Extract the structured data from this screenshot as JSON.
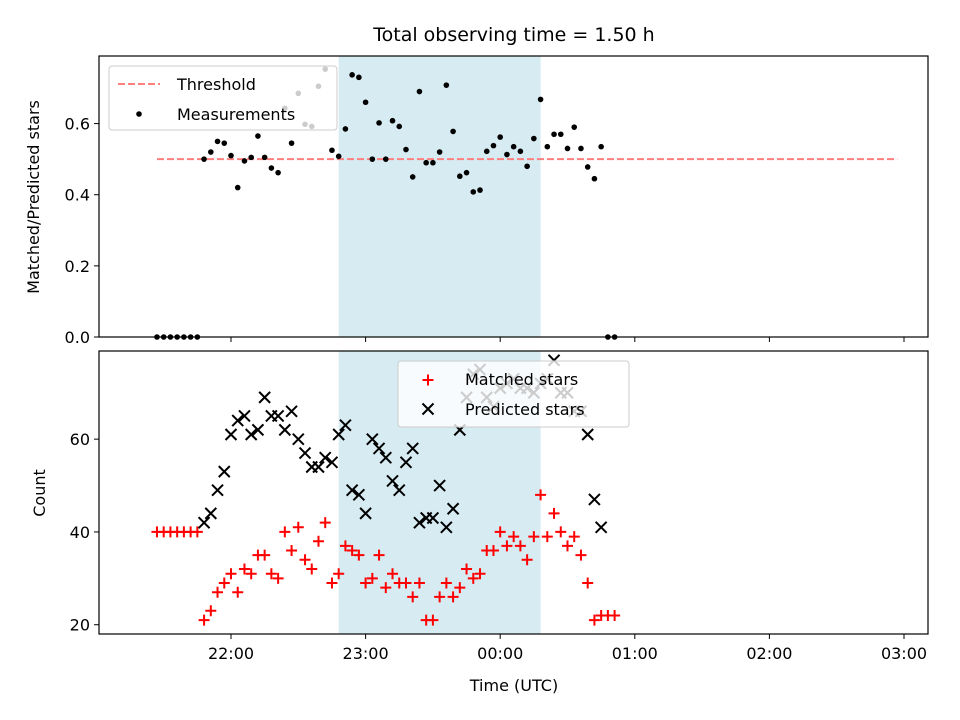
{
  "chart_data": {
    "title": "Total observing time = 1.50 h",
    "colors": {
      "threshold": "#ff7f7f",
      "measurements": "#000000",
      "matched": "#ff0000",
      "predicted": "#000000",
      "shade": "#add8e6"
    },
    "time_ticks": [
      "22:00",
      "23:00",
      "00:00",
      "01:00",
      "02:00",
      "03:00"
    ],
    "shaded_interval": {
      "start": "22:48",
      "end": "00:18"
    },
    "panels": [
      {
        "type": "scatter",
        "ylabel": "Matched/Predicted stars",
        "ylim": [
          0,
          0.79
        ],
        "yticks": [
          "0.0",
          "0.2",
          "0.4",
          "0.6"
        ],
        "legend": {
          "position": "top-left",
          "entries": [
            "Threshold",
            "Measurements"
          ]
        },
        "threshold": {
          "name": "Threshold",
          "value": 0.5,
          "x_range": [
            "21:27",
            "02:57"
          ]
        },
        "measurements": {
          "name": "Measurements",
          "points": [
            [
              "21:27",
              0.0
            ],
            [
              "21:30",
              0.0
            ],
            [
              "21:33",
              0.0
            ],
            [
              "21:36",
              0.0
            ],
            [
              "21:39",
              0.0
            ],
            [
              "21:42",
              0.0
            ],
            [
              "21:45",
              0.0
            ],
            [
              "21:48",
              0.5
            ],
            [
              "21:51",
              0.52
            ],
            [
              "21:54",
              0.55
            ],
            [
              "21:57",
              0.545
            ],
            [
              "22:00",
              0.51
            ],
            [
              "22:03",
              0.42
            ],
            [
              "22:06",
              0.495
            ],
            [
              "22:09",
              0.505
            ],
            [
              "22:12",
              0.565
            ],
            [
              "22:15",
              0.505
            ],
            [
              "22:18",
              0.475
            ],
            [
              "22:21",
              0.462
            ],
            [
              "22:24",
              0.643
            ],
            [
              "22:27",
              0.545
            ],
            [
              "22:30",
              0.685
            ],
            [
              "22:33",
              0.598
            ],
            [
              "22:36",
              0.592
            ],
            [
              "22:39",
              0.705
            ],
            [
              "22:42",
              0.753
            ],
            [
              "22:45",
              0.525
            ],
            [
              "22:48",
              0.508
            ],
            [
              "22:51",
              0.585
            ],
            [
              "22:54",
              0.737
            ],
            [
              "22:57",
              0.73
            ],
            [
              "23:00",
              0.66
            ],
            [
              "23:03",
              0.5
            ],
            [
              "23:06",
              0.602
            ],
            [
              "23:09",
              0.5
            ],
            [
              "23:12",
              0.608
            ],
            [
              "23:15",
              0.592
            ],
            [
              "23:18",
              0.527
            ],
            [
              "23:21",
              0.45
            ],
            [
              "23:24",
              0.69
            ],
            [
              "23:27",
              0.49
            ],
            [
              "23:30",
              0.49
            ],
            [
              "23:33",
              0.52
            ],
            [
              "23:36",
              0.708
            ],
            [
              "23:39",
              0.578
            ],
            [
              "23:42",
              0.452
            ],
            [
              "23:45",
              0.462
            ],
            [
              "23:48",
              0.408
            ],
            [
              "23:51",
              0.413
            ],
            [
              "23:54",
              0.522
            ],
            [
              "23:57",
              0.538
            ],
            [
              "00:00",
              0.562
            ],
            [
              "00:03",
              0.513
            ],
            [
              "00:06",
              0.535
            ],
            [
              "00:09",
              0.522
            ],
            [
              "00:12",
              0.48
            ],
            [
              "00:15",
              0.558
            ],
            [
              "00:18",
              0.668
            ],
            [
              "00:21",
              0.535
            ],
            [
              "00:24",
              0.57
            ],
            [
              "00:27",
              0.57
            ],
            [
              "00:30",
              0.53
            ],
            [
              "00:33",
              0.59
            ],
            [
              "00:36",
              0.53
            ],
            [
              "00:39",
              0.478
            ],
            [
              "00:42",
              0.445
            ],
            [
              "00:45",
              0.535
            ],
            [
              "00:48",
              0.0
            ],
            [
              "00:51",
              0.0
            ]
          ]
        }
      },
      {
        "type": "scatter",
        "ylabel": "Count",
        "xlabel": "Time (UTC)",
        "ylim": [
          18,
          79
        ],
        "yticks": [
          "20",
          "40",
          "60"
        ],
        "legend": {
          "position": "top-center",
          "entries": [
            "Matched stars",
            "Predicted stars"
          ]
        },
        "series": [
          {
            "name": "Matched stars",
            "marker": "+",
            "points": [
              [
                "21:27",
                40
              ],
              [
                "21:30",
                40
              ],
              [
                "21:33",
                40
              ],
              [
                "21:36",
                40
              ],
              [
                "21:39",
                40
              ],
              [
                "21:42",
                40
              ],
              [
                "21:45",
                40
              ],
              [
                "21:48",
                21
              ],
              [
                "21:51",
                23
              ],
              [
                "21:54",
                27
              ],
              [
                "21:57",
                29
              ],
              [
                "22:00",
                31
              ],
              [
                "22:03",
                27
              ],
              [
                "22:06",
                32
              ],
              [
                "22:09",
                31
              ],
              [
                "22:12",
                35
              ],
              [
                "22:15",
                35
              ],
              [
                "22:18",
                31
              ],
              [
                "22:21",
                30
              ],
              [
                "22:24",
                40
              ],
              [
                "22:27",
                36
              ],
              [
                "22:30",
                41
              ],
              [
                "22:33",
                34
              ],
              [
                "22:36",
                32
              ],
              [
                "22:39",
                38
              ],
              [
                "22:42",
                42
              ],
              [
                "22:45",
                29
              ],
              [
                "22:48",
                31
              ],
              [
                "22:51",
                37
              ],
              [
                "22:54",
                36
              ],
              [
                "22:57",
                35
              ],
              [
                "23:00",
                29
              ],
              [
                "23:03",
                30
              ],
              [
                "23:06",
                35
              ],
              [
                "23:09",
                28
              ],
              [
                "23:12",
                31
              ],
              [
                "23:15",
                29
              ],
              [
                "23:18",
                29
              ],
              [
                "23:21",
                26
              ],
              [
                "23:24",
                29
              ],
              [
                "23:27",
                21
              ],
              [
                "23:30",
                21
              ],
              [
                "23:33",
                26
              ],
              [
                "23:36",
                29
              ],
              [
                "23:39",
                26
              ],
              [
                "23:42",
                28
              ],
              [
                "23:45",
                32
              ],
              [
                "23:48",
                30
              ],
              [
                "23:51",
                31
              ],
              [
                "23:54",
                36
              ],
              [
                "23:57",
                36
              ],
              [
                "00:00",
                40
              ],
              [
                "00:03",
                37
              ],
              [
                "00:06",
                39
              ],
              [
                "00:09",
                37
              ],
              [
                "00:12",
                34
              ],
              [
                "00:15",
                39
              ],
              [
                "00:18",
                48
              ],
              [
                "00:21",
                39
              ],
              [
                "00:24",
                44
              ],
              [
                "00:27",
                40
              ],
              [
                "00:30",
                37
              ],
              [
                "00:33",
                39
              ],
              [
                "00:36",
                35
              ],
              [
                "00:39",
                29
              ],
              [
                "00:42",
                21
              ],
              [
                "00:45",
                22
              ],
              [
                "00:48",
                22
              ],
              [
                "00:51",
                22
              ]
            ]
          },
          {
            "name": "Predicted stars",
            "marker": "x",
            "points": [
              [
                "21:48",
                42
              ],
              [
                "21:51",
                44
              ],
              [
                "21:54",
                49
              ],
              [
                "21:57",
                53
              ],
              [
                "22:00",
                61
              ],
              [
                "22:03",
                64
              ],
              [
                "22:06",
                65
              ],
              [
                "22:09",
                61
              ],
              [
                "22:12",
                62
              ],
              [
                "22:15",
                69
              ],
              [
                "22:18",
                65
              ],
              [
                "22:21",
                65
              ],
              [
                "22:24",
                62
              ],
              [
                "22:27",
                66
              ],
              [
                "22:30",
                60
              ],
              [
                "22:33",
                57
              ],
              [
                "22:36",
                54
              ],
              [
                "22:39",
                54
              ],
              [
                "22:42",
                56
              ],
              [
                "22:45",
                55
              ],
              [
                "22:48",
                61
              ],
              [
                "22:51",
                63
              ],
              [
                "22:54",
                49
              ],
              [
                "22:57",
                48
              ],
              [
                "23:00",
                44
              ],
              [
                "23:03",
                60
              ],
              [
                "23:06",
                58
              ],
              [
                "23:09",
                56
              ],
              [
                "23:12",
                51
              ],
              [
                "23:15",
                49
              ],
              [
                "23:18",
                55
              ],
              [
                "23:21",
                58
              ],
              [
                "23:24",
                42
              ],
              [
                "23:27",
                43
              ],
              [
                "23:30",
                43
              ],
              [
                "23:33",
                50
              ],
              [
                "23:36",
                41
              ],
              [
                "23:39",
                45
              ],
              [
                "23:42",
                62
              ],
              [
                "23:45",
                69
              ],
              [
                "23:48",
                74
              ],
              [
                "23:51",
                75
              ],
              [
                "23:54",
                69
              ],
              [
                "23:57",
                67
              ],
              [
                "00:00",
                71
              ],
              [
                "00:03",
                72
              ],
              [
                "00:06",
                73
              ],
              [
                "00:09",
                71
              ],
              [
                "00:12",
                71
              ],
              [
                "00:15",
                70
              ],
              [
                "00:18",
                72
              ],
              [
                "00:21",
                73
              ],
              [
                "00:24",
                77
              ],
              [
                "00:27",
                70
              ],
              [
                "00:30",
                70
              ],
              [
                "00:33",
                66
              ],
              [
                "00:36",
                66
              ],
              [
                "00:39",
                61
              ],
              [
                "00:42",
                47
              ],
              [
                "00:45",
                41
              ]
            ]
          }
        ]
      }
    ]
  }
}
